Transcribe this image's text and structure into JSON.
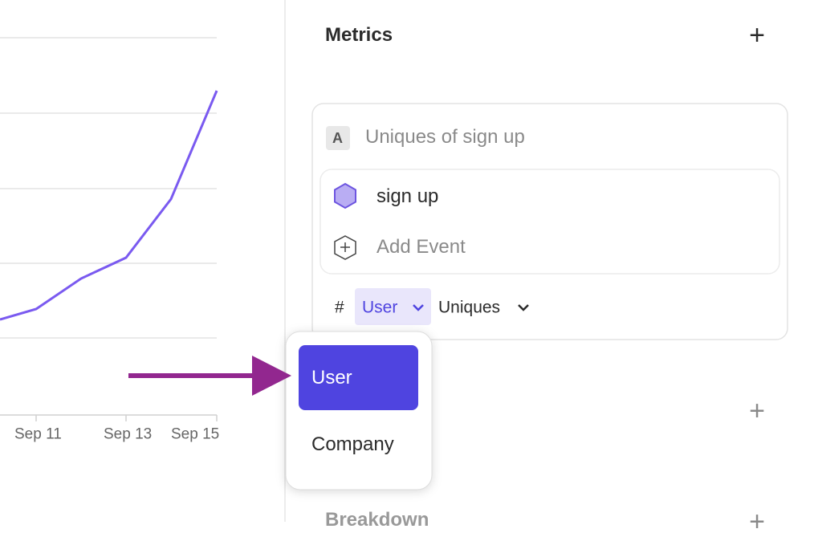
{
  "chart_axis": {
    "labels": [
      "Sep 11",
      "Sep 13",
      "Sep 15"
    ]
  },
  "metrics": {
    "title": "Metrics",
    "add": "+",
    "card": {
      "badge": "A",
      "title": "Uniques of sign up",
      "events": [
        "sign up"
      ],
      "add_event": "Add Event",
      "measure_symbol": "#",
      "entity": "User",
      "aggregation": "Uniques"
    }
  },
  "dropdown": {
    "options": [
      "User",
      "Company"
    ]
  },
  "filter_add": "+",
  "breakdown": {
    "title": "Breakdown",
    "add": "+"
  }
}
